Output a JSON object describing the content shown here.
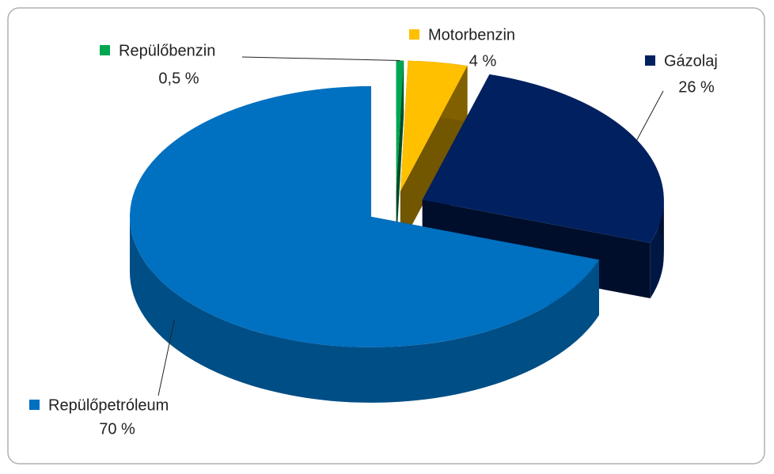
{
  "chart_data": {
    "type": "pie3d",
    "series": [
      {
        "name": "Repülőbenzin",
        "color": "#00a650",
        "values": [
          0.5
        ],
        "value_labels": [
          "0,5 %"
        ]
      },
      {
        "name": "Motorbenzin",
        "color": "#ffc000",
        "values": [
          4
        ],
        "value_labels": [
          "4 %"
        ]
      },
      {
        "name": "Gázolaj",
        "color": "#002060",
        "values": [
          26
        ],
        "value_labels": [
          "26 %"
        ]
      },
      {
        "name": "Repülőpetróleum",
        "color": "#0070c0",
        "values": [
          70
        ],
        "value_labels": [
          "70 %"
        ]
      }
    ]
  }
}
